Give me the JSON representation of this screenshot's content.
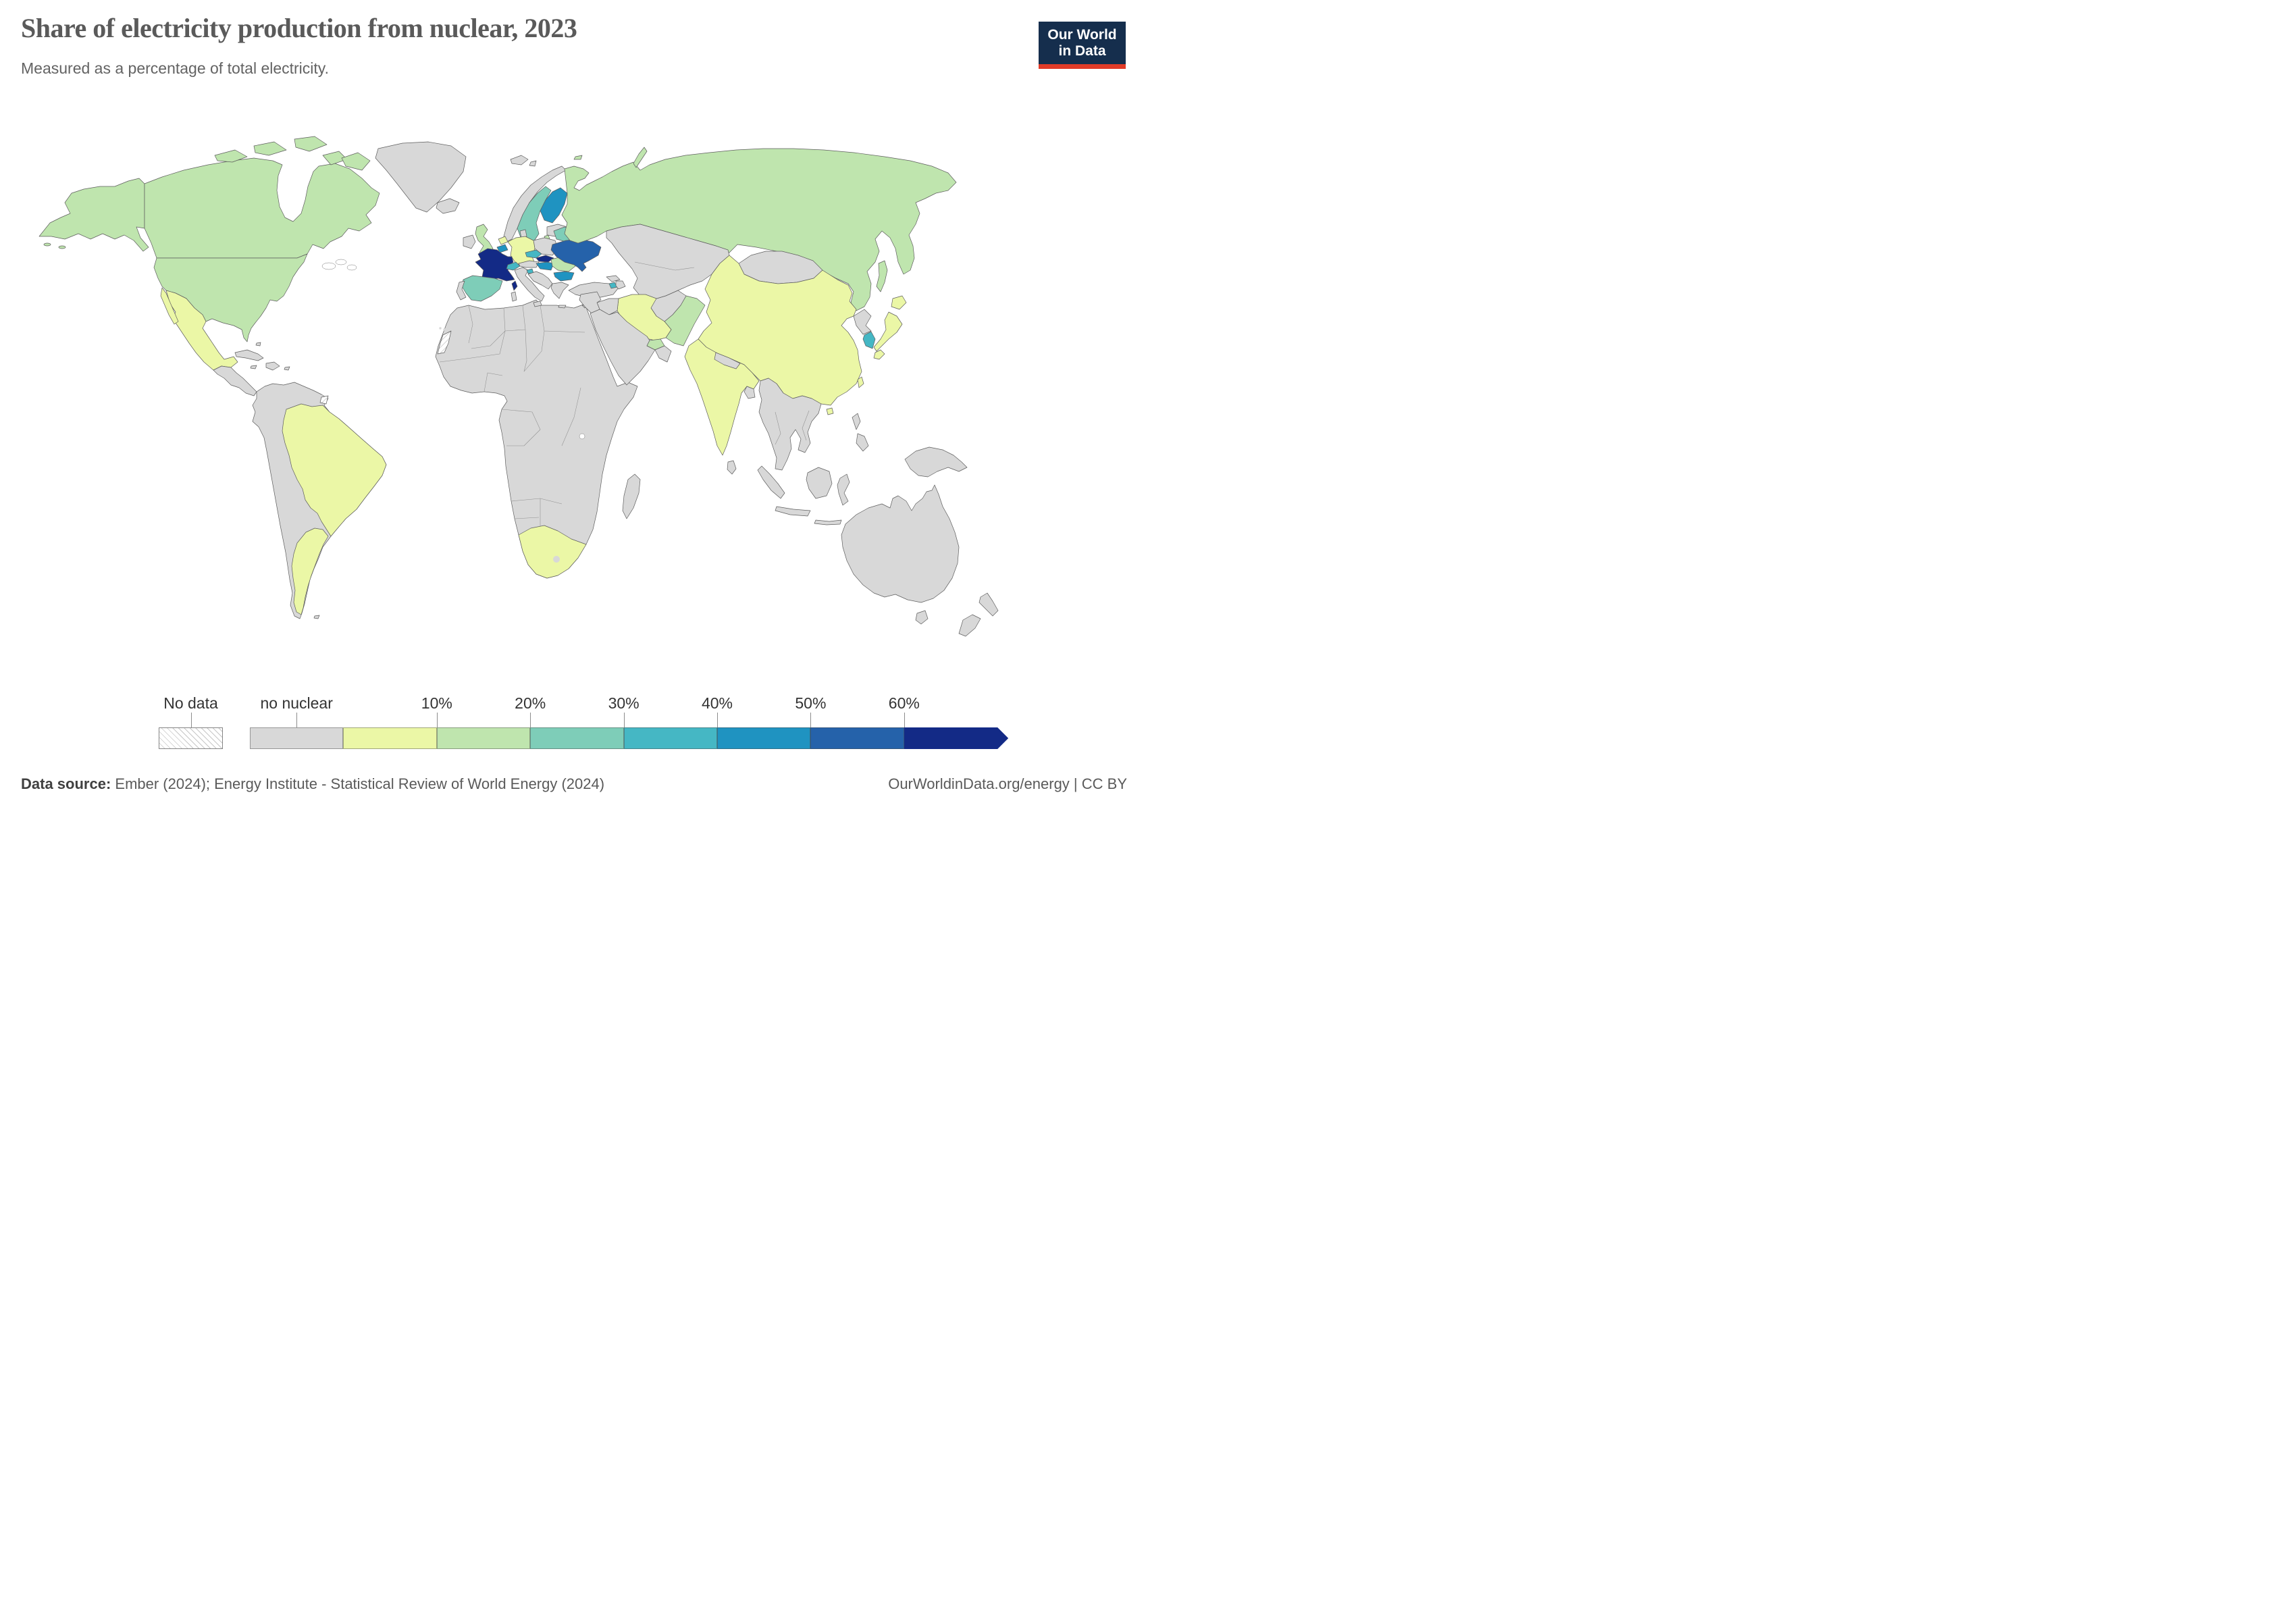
{
  "header": {
    "title": "Share of electricity production from nuclear, 2023",
    "subtitle": "Measured as a percentage of total electricity."
  },
  "logo": {
    "line1": "Our World",
    "line2": "in Data",
    "bg": "#152e4d",
    "accent": "#e13b28"
  },
  "chart_data": {
    "type": "heatmap",
    "variant": "choropleth_world_map",
    "title": "Share of electricity production from nuclear, 2023",
    "subtitle": "Measured as a percentage of total electricity.",
    "unit": "% of total electricity",
    "year": 2023,
    "legend_position": "bottom",
    "bins": [
      "No data",
      "no nuclear",
      "0-10%",
      "10-20%",
      "20-30%",
      "30-40%",
      "40-50%",
      "50-60%",
      "60%+"
    ],
    "bin_colors": [
      "hatched",
      "#d8d8d8",
      "#ebf7a6",
      "#bfe5ae",
      "#7ecdb8",
      "#45b7c4",
      "#1f93c1",
      "#2562aa",
      "#132a86"
    ],
    "values_by_country": {
      "France": "60%+",
      "Slovakia": "60%+",
      "Ukraine": "50-60%",
      "Finland": "40-50%",
      "Belgium": "40-50%",
      "Hungary": "40-50%",
      "Bulgaria": "40-50%",
      "Switzerland": "30-40%",
      "Czechia": "30-40%",
      "Slovenia": "30-40%",
      "Armenia": "30-40%",
      "South Korea": "30-40%",
      "Sweden": "20-30%",
      "Spain": "20-30%",
      "Belarus": "20-30%",
      "United States": "10-20%",
      "Canada": "10-20%",
      "United Kingdom": "10-20%",
      "Russia": "10-20%",
      "Romania": "10-20%",
      "Pakistan": "10-20%",
      "United Arab Emirates": "10-20%",
      "Germany": "0-10%",
      "Netherlands": "0-10%",
      "Mexico": "0-10%",
      "Brazil": "0-10%",
      "Argentina": "0-10%",
      "South Africa": "0-10%",
      "China": "0-10%",
      "India": "0-10%",
      "Japan": "0-10%",
      "Taiwan": "0-10%",
      "Iran": "0-10%",
      "Western Sahara": "No data",
      "French Guiana": "No data",
      "All other shaded countries": "no nuclear"
    }
  },
  "map": {
    "ocean": "#ffffff",
    "border_color": "#5d5d5d",
    "fills": {
      "usa": "#bfe5ae",
      "canada": "#bfe5ae",
      "greenland": "#d8d8d8",
      "mexico": "#ebf7a6",
      "central-america": "#d8d8d8",
      "caribbean": "#d8d8d8",
      "south-america": "#d8d8d8",
      "brazil": "#ebf7a6",
      "argentina": "#ebf7a6",
      "french-guiana": "hatch",
      "falkland-islands": "#d8d8d8",
      "africa": "#d8d8d8",
      "south-africa": "#ebf7a6",
      "lesotho": "#d8d8d8",
      "madagascar": "#d8d8d8",
      "western-sahara": "hatch",
      "iceland": "#d8d8d8",
      "ireland": "#d8d8d8",
      "united-kingdom": "#bfe5ae",
      "norway": "#d8d8d8",
      "svalbard": "#d8d8d8",
      "sweden": "#7ecdb8",
      "finland": "#1f93c1",
      "baltics": "#d8d8d8",
      "poland": "#d8d8d8",
      "denmark": "#d8d8d8",
      "netherlands": "#ebf7a6",
      "belgium": "#1f93c1",
      "germany": "#ebf7a6",
      "czechia": "#45b7c4",
      "slovakia": "#132a86",
      "austria": "#d8d8d8",
      "switzerland": "#45b7c4",
      "france": "#132a86",
      "spain": "#7ecdb8",
      "portugal": "#d8d8d8",
      "italy": "#d8d8d8",
      "slovenia": "#45b7c4",
      "balkans": "#d8d8d8",
      "hungary": "#1f93c1",
      "romania": "#bfe5ae",
      "bulgaria": "#1f93c1",
      "greece": "#d8d8d8",
      "belarus": "#7ecdb8",
      "ukraine": "#2562aa",
      "turkey": "#d8d8d8",
      "georgia": "#d8d8d8",
      "armenia": "#45b7c4",
      "azerbaijan": "#d8d8d8",
      "cyprus": "#d8d8d8",
      "russia": "#bfe5ae",
      "kazakhstan": "#d8d8d8",
      "mongolia": "#d8d8d8",
      "china": "#ebf7a6",
      "north-korea": "#d8d8d8",
      "south-korea": "#45b7c4",
      "japan": "#ebf7a6",
      "taiwan": "#ebf7a6",
      "india": "#ebf7a6",
      "nepal": "#d8d8d8",
      "bangladesh": "#d8d8d8",
      "sri-lanka": "#d8d8d8",
      "pakistan": "#bfe5ae",
      "afghanistan": "#d8d8d8",
      "iran": "#ebf7a6",
      "iraq": "#d8d8d8",
      "levant": "#d8d8d8",
      "saudi-arabia": "#d8d8d8",
      "uae": "#bfe5ae",
      "oman": "#d8d8d8",
      "indochina": "#d8d8d8",
      "indonesia": "#d8d8d8",
      "philippines": "#d8d8d8",
      "new-guinea": "#d8d8d8",
      "australia": "#d8d8d8",
      "new-zealand": "#d8d8d8"
    }
  },
  "legend": {
    "no_data_label": "No data",
    "bins": [
      {
        "label": "no nuclear",
        "color": "#d8d8d8"
      },
      {
        "label": "10%",
        "color": "#ebf7a6"
      },
      {
        "label": "20%",
        "color": "#bfe5ae"
      },
      {
        "label": "30%",
        "color": "#7ecdb8"
      },
      {
        "label": "40%",
        "color": "#45b7c4"
      },
      {
        "label": "50%",
        "color": "#1f93c1"
      },
      {
        "label": "60%",
        "color": "#2562aa"
      },
      {
        "label": "",
        "color": "#132a86"
      }
    ]
  },
  "footer": {
    "source_label": "Data source:",
    "source_text": " Ember (2024); Energy Institute - Statistical Review of World Energy (2024)",
    "link": "OurWorldinData.org/energy | CC BY"
  }
}
